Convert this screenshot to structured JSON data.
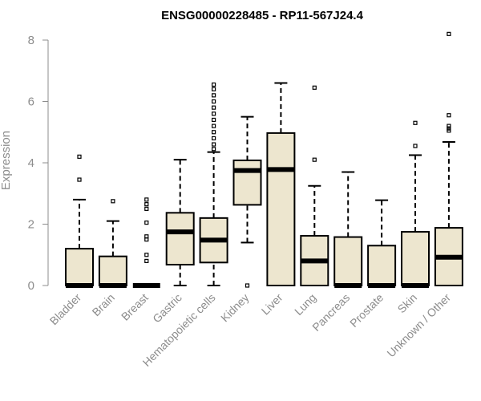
{
  "chart_data": {
    "type": "boxplot",
    "title": "ENSG00000228485 - RP11-567J24.4",
    "xlabel": "",
    "ylabel": "Expression",
    "ylim": [
      0,
      8
    ],
    "yticks": [
      "0",
      "2",
      "4",
      "6",
      "8"
    ],
    "box_fill": "#ede6cf",
    "categories": [
      "Bladder",
      "Brain",
      "Breast",
      "Gastric",
      "Hematopoietic cells",
      "Kidney",
      "Liver",
      "Lung",
      "Pancreas",
      "Prostate",
      "Skin",
      "Unknown / Other"
    ],
    "series": [
      {
        "name": "Bladder",
        "min": 0,
        "q1": 0,
        "median": 0,
        "q3": 1.2,
        "max": 2.8,
        "outliers": [
          3.45,
          4.2
        ]
      },
      {
        "name": "Brain",
        "min": 0,
        "q1": 0,
        "median": 0,
        "q3": 0.95,
        "max": 2.1,
        "outliers": [
          2.75
        ]
      },
      {
        "name": "Breast",
        "min": 0,
        "q1": 0,
        "median": 0,
        "q3": 0,
        "max": 0,
        "outliers": [
          0.8,
          1.0,
          1.5,
          1.6,
          2.05,
          2.5,
          2.65,
          2.8
        ]
      },
      {
        "name": "Gastric",
        "min": 0,
        "q1": 0.68,
        "median": 1.75,
        "q3": 2.37,
        "max": 4.1,
        "outliers": []
      },
      {
        "name": "Hematopoietic cells",
        "min": 0,
        "q1": 0.75,
        "median": 1.48,
        "q3": 2.2,
        "max": 4.35,
        "outliers": [
          4.45,
          4.6,
          4.8,
          5.0,
          5.2,
          5.4,
          5.6,
          5.8,
          6.0,
          6.2,
          6.4,
          6.55
        ]
      },
      {
        "name": "Kidney",
        "min": 1.4,
        "q1": 2.63,
        "median": 3.75,
        "q3": 4.08,
        "max": 5.5,
        "outliers": [
          0
        ]
      },
      {
        "name": "Liver",
        "min": 0,
        "q1": 0,
        "median": 3.78,
        "q3": 4.97,
        "max": 6.6,
        "outliers": []
      },
      {
        "name": "Lung",
        "min": 0,
        "q1": 0,
        "median": 0.8,
        "q3": 1.62,
        "max": 3.25,
        "outliers": [
          4.1,
          6.45
        ]
      },
      {
        "name": "Pancreas",
        "min": 0,
        "q1": 0,
        "median": 0,
        "q3": 1.58,
        "max": 3.7,
        "outliers": []
      },
      {
        "name": "Prostate",
        "min": 0,
        "q1": 0,
        "median": 0,
        "q3": 1.3,
        "max": 2.78,
        "outliers": []
      },
      {
        "name": "Skin",
        "min": 0,
        "q1": 0,
        "median": 0,
        "q3": 1.75,
        "max": 4.25,
        "outliers": [
          4.55,
          5.3
        ]
      },
      {
        "name": "Unknown / Other",
        "min": 0,
        "q1": 0,
        "median": 0.92,
        "q3": 1.88,
        "max": 4.68,
        "outliers": [
          5.05,
          5.12,
          5.2,
          5.55,
          8.2
        ]
      }
    ]
  }
}
